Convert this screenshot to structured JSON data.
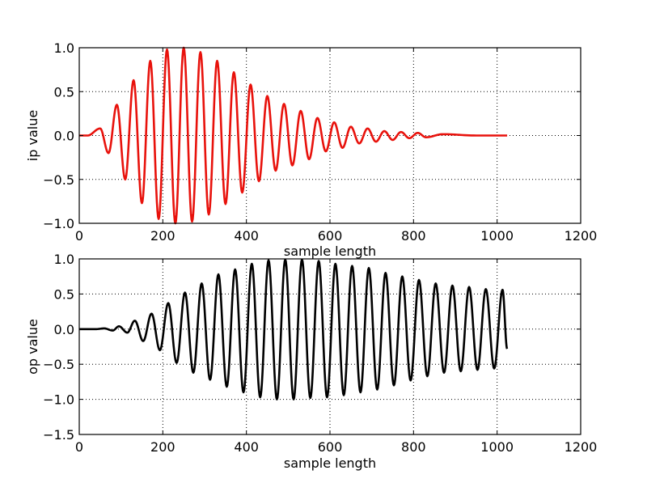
{
  "chart_data": [
    {
      "type": "line",
      "title": "",
      "xlabel": "sample length",
      "ylabel": "ip value",
      "xlim": [
        0,
        1200
      ],
      "ylim": [
        -1.0,
        1.0
      ],
      "xticks": [
        0,
        200,
        400,
        600,
        800,
        1000,
        1200
      ],
      "xtick_labels": [
        "0",
        "200",
        "400",
        "600",
        "800",
        "1000",
        "1200"
      ],
      "yticks": [
        -1.0,
        -0.5,
        0.0,
        0.5,
        1.0
      ],
      "ytick_labels": [
        "−1.0",
        "−0.5",
        "0.0",
        "0.5",
        "1.0"
      ],
      "grid": true,
      "series": [
        {
          "name": "ip",
          "color": "#e8120c",
          "n_samples": 1024,
          "period_samples": 40,
          "peaks": [
            [
              10,
              0.0
            ],
            [
              20,
              0.0
            ],
            [
              50,
              0.08
            ],
            [
              70,
              -0.2
            ],
            [
              90,
              0.35
            ],
            [
              110,
              -0.5
            ],
            [
              130,
              0.63
            ],
            [
              150,
              -0.77
            ],
            [
              170,
              0.85
            ],
            [
              190,
              -0.95
            ],
            [
              210,
              0.98
            ],
            [
              230,
              -1.0
            ],
            [
              250,
              1.0
            ],
            [
              270,
              -0.98
            ],
            [
              290,
              0.95
            ],
            [
              310,
              -0.9
            ],
            [
              330,
              0.85
            ],
            [
              350,
              -0.78
            ],
            [
              370,
              0.72
            ],
            [
              390,
              -0.65
            ],
            [
              410,
              0.58
            ],
            [
              430,
              -0.52
            ],
            [
              450,
              0.45
            ],
            [
              470,
              -0.4
            ],
            [
              490,
              0.36
            ],
            [
              510,
              -0.34
            ],
            [
              530,
              0.28
            ],
            [
              550,
              -0.27
            ],
            [
              570,
              0.2
            ],
            [
              590,
              -0.18
            ],
            [
              610,
              0.15
            ],
            [
              630,
              -0.14
            ],
            [
              650,
              0.1
            ],
            [
              670,
              -0.09
            ],
            [
              690,
              0.08
            ],
            [
              710,
              -0.07
            ],
            [
              730,
              0.05
            ],
            [
              750,
              -0.05
            ],
            [
              770,
              0.04
            ],
            [
              790,
              -0.03
            ],
            [
              810,
              0.03
            ],
            [
              830,
              -0.02
            ],
            [
              870,
              0.015
            ],
            [
              950,
              0.0
            ],
            [
              1024,
              0.0
            ]
          ]
        }
      ]
    },
    {
      "type": "line",
      "title": "",
      "xlabel": "sample length",
      "ylabel": "op value",
      "xlim": [
        0,
        1200
      ],
      "ylim": [
        -1.5,
        1.0
      ],
      "xticks": [
        0,
        200,
        400,
        600,
        800,
        1000,
        1200
      ],
      "xtick_labels": [
        "0",
        "200",
        "400",
        "600",
        "800",
        "1000",
        "1200"
      ],
      "yticks": [
        -1.5,
        -1.0,
        -0.5,
        0.0,
        0.5,
        1.0
      ],
      "ytick_labels": [
        "−1.5",
        "−1.0",
        "−0.5",
        "0.0",
        "0.5",
        "1.0"
      ],
      "grid": true,
      "series": [
        {
          "name": "op",
          "color": "#000000",
          "n_samples": 1024,
          "period_samples": 40,
          "peaks": [
            [
              10,
              0.0
            ],
            [
              40,
              0.0
            ],
            [
              60,
              0.01
            ],
            [
              80,
              -0.02
            ],
            [
              95,
              0.04
            ],
            [
              115,
              -0.05
            ],
            [
              133,
              0.12
            ],
            [
              153,
              -0.17
            ],
            [
              173,
              0.22
            ],
            [
              193,
              -0.3
            ],
            [
              213,
              0.37
            ],
            [
              233,
              -0.48
            ],
            [
              253,
              0.52
            ],
            [
              273,
              -0.62
            ],
            [
              293,
              0.65
            ],
            [
              313,
              -0.72
            ],
            [
              333,
              0.78
            ],
            [
              353,
              -0.82
            ],
            [
              373,
              0.85
            ],
            [
              393,
              -0.9
            ],
            [
              413,
              0.93
            ],
            [
              433,
              -0.97
            ],
            [
              453,
              0.98
            ],
            [
              473,
              -1.0
            ],
            [
              493,
              0.99
            ],
            [
              513,
              -1.0
            ],
            [
              533,
              0.99
            ],
            [
              553,
              -0.98
            ],
            [
              573,
              0.97
            ],
            [
              593,
              -0.97
            ],
            [
              613,
              0.93
            ],
            [
              633,
              -0.94
            ],
            [
              653,
              0.9
            ],
            [
              673,
              -0.9
            ],
            [
              693,
              0.87
            ],
            [
              713,
              -0.86
            ],
            [
              733,
              0.8
            ],
            [
              753,
              -0.8
            ],
            [
              773,
              0.75
            ],
            [
              793,
              -0.73
            ],
            [
              813,
              0.7
            ],
            [
              833,
              -0.67
            ],
            [
              853,
              0.65
            ],
            [
              873,
              -0.62
            ],
            [
              893,
              0.62
            ],
            [
              913,
              -0.6
            ],
            [
              933,
              0.6
            ],
            [
              953,
              -0.58
            ],
            [
              973,
              0.57
            ],
            [
              993,
              -0.56
            ],
            [
              1013,
              0.56
            ],
            [
              1024,
              -0.28
            ]
          ]
        }
      ]
    }
  ]
}
